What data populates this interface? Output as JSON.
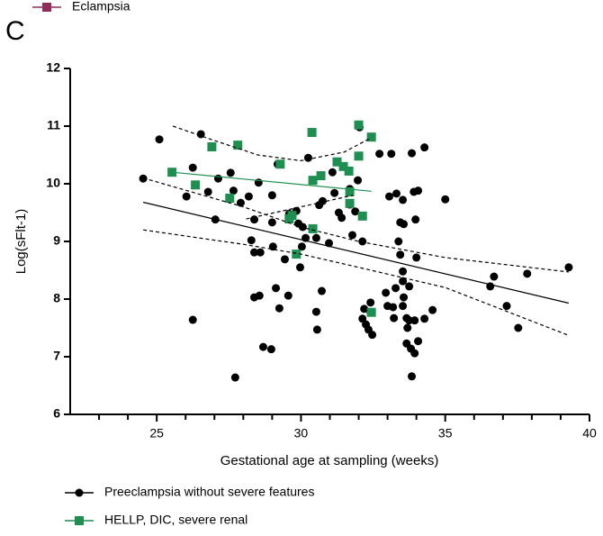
{
  "chart_data": {
    "type": "scatter",
    "panel": "C",
    "xlabel": "Gestational age at sampling (weeks)",
    "ylabel": "Log(sFlt-1)",
    "xlim": [
      22,
      40
    ],
    "xticks": [
      25,
      30,
      35,
      40
    ],
    "xminor": [
      23,
      24,
      26,
      27,
      28,
      29,
      31,
      32,
      33,
      34,
      36,
      37,
      38,
      39
    ],
    "ylim": [
      6,
      12
    ],
    "yticks": [
      6,
      7,
      8,
      9,
      10,
      11,
      12
    ],
    "series": [
      {
        "name": "Preeclampsia without severe features",
        "color": "#000000",
        "marker": "circle",
        "x": [
          24.53,
          25.09,
          26.25,
          26.03,
          26.25,
          26.78,
          26.53,
          27.13,
          27.03,
          27.56,
          27.66,
          27.91,
          27.72,
          28.19,
          28.53,
          28.38,
          28.28,
          28.38,
          28.59,
          28.38,
          28.56,
          28.69,
          28.97,
          29.0,
          29.0,
          29.03,
          29.13,
          29.25,
          29.19,
          29.44,
          29.56,
          29.59,
          29.84,
          29.91,
          30.06,
          30.16,
          30.03,
          29.97,
          30.25,
          30.63,
          30.75,
          30.53,
          30.53,
          30.56,
          30.72,
          30.97,
          31.09,
          31.16,
          31.31,
          31.41,
          31.69,
          31.69,
          31.78,
          31.88,
          31.97,
          32.03,
          32.13,
          32.19,
          32.13,
          32.25,
          32.41,
          32.34,
          32.47,
          32.41,
          32.72,
          33.13,
          32.94,
          33.0,
          33.06,
          33.22,
          33.19,
          33.28,
          33.31,
          33.38,
          33.44,
          33.44,
          33.53,
          33.53,
          33.53,
          33.56,
          33.56,
          33.53,
          33.66,
          33.69,
          33.66,
          33.81,
          33.84,
          33.75,
          33.75,
          33.84,
          33.91,
          33.97,
          34.0,
          33.94,
          33.94,
          34.06,
          34.06,
          34.28,
          34.28,
          34.56,
          35.0,
          36.56,
          36.69,
          37.13,
          37.53,
          37.84,
          39.28
        ],
        "values": [
          10.09,
          10.77,
          10.28,
          9.78,
          7.64,
          9.86,
          10.86,
          10.09,
          9.38,
          10.19,
          9.88,
          9.67,
          6.64,
          9.78,
          10.02,
          9.38,
          9.02,
          8.81,
          8.81,
          8.03,
          8.06,
          7.17,
          7.13,
          9.8,
          9.33,
          8.91,
          8.19,
          7.84,
          10.34,
          8.69,
          8.06,
          9.48,
          9.53,
          9.31,
          9.25,
          9.06,
          8.91,
          8.55,
          10.45,
          9.63,
          9.7,
          9.06,
          7.78,
          7.47,
          8.14,
          8.97,
          10.2,
          9.84,
          9.5,
          9.41,
          9.91,
          9.64,
          9.11,
          9.52,
          10.06,
          10.98,
          7.66,
          7.83,
          9.0,
          7.56,
          7.94,
          7.47,
          7.38,
          7.77,
          10.52,
          10.52,
          8.11,
          7.88,
          9.78,
          7.67,
          7.86,
          8.19,
          9.83,
          9.0,
          9.33,
          8.77,
          8.48,
          8.31,
          9.72,
          9.3,
          8.03,
          7.88,
          7.67,
          7.5,
          7.23,
          7.14,
          6.66,
          8.22,
          7.63,
          10.53,
          9.86,
          9.38,
          8.72,
          7.06,
          7.63,
          9.88,
          7.27,
          10.63,
          7.66,
          7.81,
          9.73,
          8.22,
          8.39,
          7.88,
          7.5,
          8.44,
          8.55
        ]
      },
      {
        "name": "HELLP, DIC, severe renal",
        "color": "#1e8f50",
        "marker": "square",
        "x": [
          25.53,
          26.34,
          26.91,
          27.81,
          27.53,
          29.28,
          29.59,
          29.69,
          29.84,
          30.38,
          30.41,
          30.41,
          30.69,
          31.25,
          31.47,
          31.66,
          31.69,
          31.69,
          32.0,
          32.0,
          32.13,
          32.44,
          32.44
        ],
        "values": [
          10.2,
          9.98,
          10.64,
          10.67,
          9.75,
          10.34,
          9.39,
          9.45,
          8.78,
          10.89,
          10.06,
          9.22,
          10.14,
          10.38,
          10.3,
          10.22,
          9.86,
          9.66,
          11.02,
          10.48,
          9.44,
          10.81,
          7.77
        ]
      },
      {
        "name": "Eclampsia",
        "color": "#8e2c5a",
        "marker": "square",
        "x": [],
        "values": []
      }
    ],
    "lines": [
      {
        "color": "#000000",
        "dash": false,
        "x": [
          24.53,
          39.28
        ],
        "values": [
          9.68,
          7.93
        ]
      },
      {
        "color": "#000000",
        "dash": true,
        "x": [
          24.53,
          28,
          30,
          32,
          35,
          39.28
        ],
        "values": [
          10.1,
          9.6,
          9.25,
          9.0,
          8.72,
          8.47
        ]
      },
      {
        "color": "#000000",
        "dash": true,
        "x": [
          24.53,
          28,
          30,
          32,
          35,
          39.28
        ],
        "values": [
          9.2,
          8.95,
          8.78,
          8.55,
          8.2,
          7.37
        ]
      },
      {
        "color": "#1e8f50",
        "dash": false,
        "x": [
          25.53,
          32.44
        ],
        "values": [
          10.2,
          9.87
        ]
      },
      {
        "color": "#000000",
        "dash": true,
        "x": [
          25.56,
          27,
          28.5,
          30,
          31.5,
          32.44
        ],
        "values": [
          11.0,
          10.75,
          10.5,
          10.4,
          10.55,
          10.8
        ]
      },
      {
        "color": "#000000",
        "dash": true,
        "x": [
          28.1,
          30,
          31.8
        ],
        "values": [
          9.39,
          9.6,
          9.8
        ]
      }
    ]
  }
}
